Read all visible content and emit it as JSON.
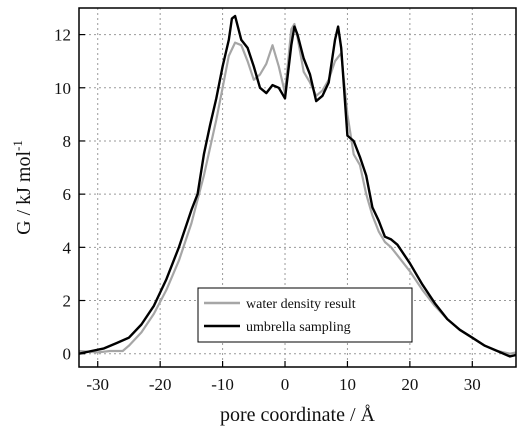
{
  "chart_data": {
    "type": "line",
    "title": "",
    "xlabel": "pore coordinate / Å",
    "ylabel_main": "G / kJ mol",
    "ylabel_sup": "-1",
    "xlim": [
      -33,
      37
    ],
    "ylim": [
      -0.5,
      13
    ],
    "xticks": [
      -30,
      -20,
      -10,
      0,
      10,
      20,
      30
    ],
    "yticks": [
      0,
      2,
      4,
      6,
      8,
      10,
      12
    ],
    "grid": true,
    "legend_position": "bottom-center",
    "series": [
      {
        "name": "water density result",
        "color": "#a6a6a6",
        "x": [
          -33,
          -30,
          -28,
          -26,
          -25,
          -23,
          -21,
          -19,
          -17,
          -15,
          -13,
          -11,
          -10,
          -9,
          -8,
          -7,
          -6,
          -5,
          -4,
          -3,
          -2,
          -1,
          0,
          1,
          1.5,
          2,
          3,
          4,
          5,
          6,
          7,
          8,
          9,
          10,
          11,
          12,
          13,
          14,
          15,
          16,
          17,
          18,
          20,
          22,
          24,
          26,
          28,
          30,
          32,
          34,
          36,
          37
        ],
        "y": [
          0.1,
          0.05,
          0.1,
          0.1,
          0.3,
          0.8,
          1.5,
          2.4,
          3.5,
          4.9,
          6.7,
          8.8,
          10.0,
          11.2,
          11.7,
          11.6,
          11.0,
          10.3,
          10.5,
          10.9,
          11.6,
          10.8,
          9.8,
          12.2,
          12.4,
          11.9,
          10.6,
          10.2,
          9.7,
          9.9,
          10.3,
          11.0,
          11.3,
          9.0,
          7.5,
          7.1,
          6.0,
          5.2,
          4.6,
          4.2,
          4.0,
          3.7,
          3.1,
          2.4,
          1.8,
          1.3,
          0.9,
          0.6,
          0.3,
          0.1,
          0.0,
          0.05
        ]
      },
      {
        "name": "umbrella sampling",
        "color": "#000000",
        "x": [
          -33,
          -31,
          -29,
          -27,
          -25,
          -23,
          -21,
          -19,
          -17,
          -15,
          -14,
          -13,
          -12,
          -11,
          -10,
          -9,
          -8.5,
          -8,
          -7,
          -6,
          -5,
          -4,
          -3,
          -2,
          -1,
          0,
          1,
          1.5,
          2,
          3,
          4,
          5,
          6,
          7,
          8,
          8.5,
          9,
          10,
          11,
          12,
          13,
          14,
          15,
          16,
          17,
          18,
          20,
          22,
          24,
          26,
          28,
          30,
          32,
          34,
          36,
          37
        ],
        "y": [
          0.0,
          0.1,
          0.2,
          0.4,
          0.6,
          1.1,
          1.8,
          2.8,
          4.0,
          5.4,
          6.0,
          7.5,
          8.6,
          9.6,
          10.8,
          11.8,
          12.6,
          12.7,
          11.8,
          11.5,
          10.8,
          10.0,
          9.8,
          10.1,
          10.0,
          9.6,
          11.6,
          12.3,
          12.0,
          11.1,
          10.5,
          9.5,
          9.7,
          10.2,
          11.8,
          12.3,
          11.5,
          8.2,
          8.0,
          7.4,
          6.7,
          5.5,
          5.0,
          4.4,
          4.3,
          4.1,
          3.4,
          2.6,
          1.9,
          1.3,
          0.9,
          0.6,
          0.3,
          0.1,
          -0.1,
          -0.05
        ]
      }
    ]
  }
}
